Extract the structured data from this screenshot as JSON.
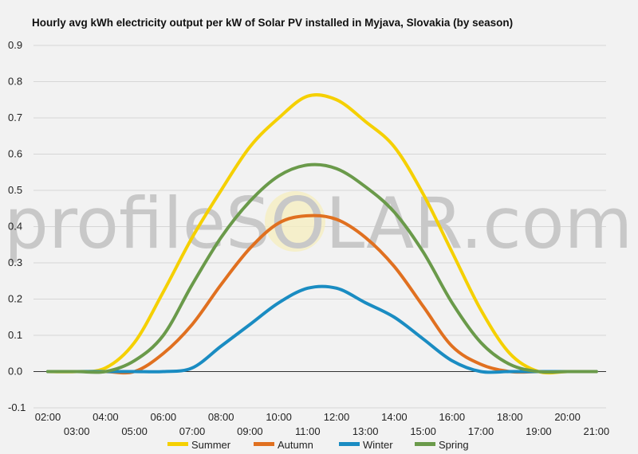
{
  "chart_data": {
    "type": "line",
    "title": "Hourly avg kWh electricity output per kW of Solar PV installed in Myjava, Slovakia (by season)",
    "watermark": "profileSOLAR.com",
    "x": [
      "02:00",
      "03:00",
      "04:00",
      "05:00",
      "06:00",
      "07:00",
      "08:00",
      "09:00",
      "10:00",
      "11:00",
      "12:00",
      "13:00",
      "14:00",
      "15:00",
      "16:00",
      "17:00",
      "18:00",
      "19:00",
      "20:00",
      "21:00"
    ],
    "ylim": [
      -0.1,
      0.9
    ],
    "yticks": [
      "-0.1",
      "0.0",
      "0.1",
      "0.2",
      "0.3",
      "0.4",
      "0.5",
      "0.6",
      "0.7",
      "0.8",
      "0.9"
    ],
    "grid": true,
    "legend_position": "bottom",
    "series": [
      {
        "name": "Summer",
        "color": "#f5d000",
        "values": [
          0.0,
          0.0,
          0.01,
          0.08,
          0.22,
          0.37,
          0.5,
          0.62,
          0.7,
          0.76,
          0.75,
          0.69,
          0.62,
          0.49,
          0.33,
          0.17,
          0.05,
          0.0,
          0.0,
          0.0
        ]
      },
      {
        "name": "Autumn",
        "color": "#e07020",
        "values": [
          0.0,
          0.0,
          0.0,
          0.0,
          0.05,
          0.13,
          0.24,
          0.34,
          0.41,
          0.43,
          0.42,
          0.37,
          0.29,
          0.18,
          0.07,
          0.02,
          0.0,
          0.0,
          0.0,
          0.0
        ]
      },
      {
        "name": "Winter",
        "color": "#1a8cc2",
        "values": [
          0.0,
          0.0,
          0.0,
          0.0,
          0.0,
          0.01,
          0.07,
          0.13,
          0.19,
          0.23,
          0.23,
          0.19,
          0.15,
          0.09,
          0.03,
          0.0,
          0.0,
          0.0,
          0.0,
          0.0
        ]
      },
      {
        "name": "Spring",
        "color": "#6a9a4a",
        "values": [
          0.0,
          0.0,
          0.0,
          0.03,
          0.1,
          0.24,
          0.37,
          0.47,
          0.54,
          0.57,
          0.56,
          0.51,
          0.44,
          0.33,
          0.19,
          0.08,
          0.02,
          0.0,
          0.0,
          0.0
        ]
      }
    ]
  }
}
